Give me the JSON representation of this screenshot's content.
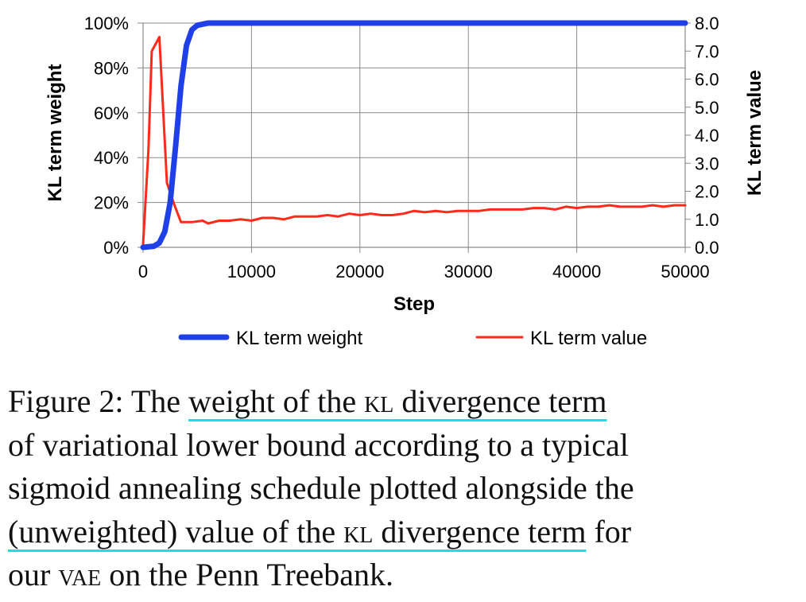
{
  "chart_data": {
    "type": "line",
    "xlabel": "Step",
    "ylabel_left": "KL term weight",
    "ylabel_right": "KL term value",
    "x_ticks": [
      "0",
      "10000",
      "20000",
      "30000",
      "40000",
      "50000"
    ],
    "y_left_ticks": [
      "0%",
      "20%",
      "40%",
      "60%",
      "80%",
      "100%"
    ],
    "y_right_ticks": [
      "0.0",
      "1.0",
      "2.0",
      "3.0",
      "4.0",
      "5.0",
      "6.0",
      "7.0",
      "8.0"
    ],
    "xlim": [
      0,
      50000
    ],
    "ylim_left": [
      0,
      1
    ],
    "ylim_right": [
      0,
      8
    ],
    "grid": true,
    "legend_position": "bottom",
    "series": [
      {
        "name": "KL term weight",
        "axis": "left",
        "color": "#1f3fe8",
        "x": [
          0,
          1000,
          1500,
          2000,
          2500,
          3000,
          3500,
          4000,
          4500,
          5000,
          6000,
          8000,
          50000
        ],
        "y": [
          0,
          0.005,
          0.02,
          0.07,
          0.2,
          0.45,
          0.72,
          0.9,
          0.97,
          0.99,
          1.0,
          1.0,
          1.0
        ]
      },
      {
        "name": "KL term value",
        "axis": "right",
        "color": "#ff2a1a",
        "x": [
          0,
          500,
          800,
          1500,
          2200,
          2800,
          3500,
          4500,
          5500,
          6000,
          7000,
          8000,
          9000,
          10000,
          11000,
          12000,
          13000,
          14000,
          15000,
          16000,
          17000,
          18000,
          19000,
          20000,
          21000,
          22000,
          23000,
          24000,
          25000,
          26000,
          27000,
          28000,
          29000,
          30000,
          31000,
          32000,
          33000,
          34000,
          35000,
          36000,
          37000,
          38000,
          39000,
          40000,
          41000,
          42000,
          43000,
          44000,
          45000,
          46000,
          47000,
          48000,
          49000,
          50000
        ],
        "y": [
          0.1,
          3.5,
          7.0,
          7.5,
          2.3,
          1.6,
          0.9,
          0.9,
          0.95,
          0.85,
          0.95,
          0.95,
          1.0,
          0.95,
          1.05,
          1.05,
          1.0,
          1.1,
          1.1,
          1.1,
          1.15,
          1.1,
          1.2,
          1.15,
          1.2,
          1.15,
          1.15,
          1.2,
          1.3,
          1.25,
          1.3,
          1.25,
          1.3,
          1.3,
          1.3,
          1.35,
          1.35,
          1.35,
          1.35,
          1.4,
          1.4,
          1.35,
          1.45,
          1.4,
          1.45,
          1.45,
          1.5,
          1.45,
          1.45,
          1.45,
          1.5,
          1.45,
          1.5,
          1.5
        ]
      }
    ]
  },
  "caption": {
    "lines": [
      [
        {
          "t": "Figure 2:  The "
        },
        {
          "t": "weight of the ",
          "u": true
        },
        {
          "t": "kl",
          "u": true,
          "sc": true
        },
        {
          "t": " divergence term",
          "u": true
        }
      ],
      [
        {
          "t": "of variational lower bound according to a typical"
        }
      ],
      [
        {
          "t": "sigmoid annealing schedule plotted alongside the"
        }
      ],
      [
        {
          "t": "(unweighted) value of the ",
          "u": true
        },
        {
          "t": "kl",
          "u": true,
          "sc": true
        },
        {
          "t": " divergence term",
          "u": true
        },
        {
          "t": " for"
        }
      ],
      [
        {
          "t": "our "
        },
        {
          "t": "vae",
          "sc": true
        },
        {
          "t": " on the Penn Treebank."
        }
      ]
    ]
  }
}
